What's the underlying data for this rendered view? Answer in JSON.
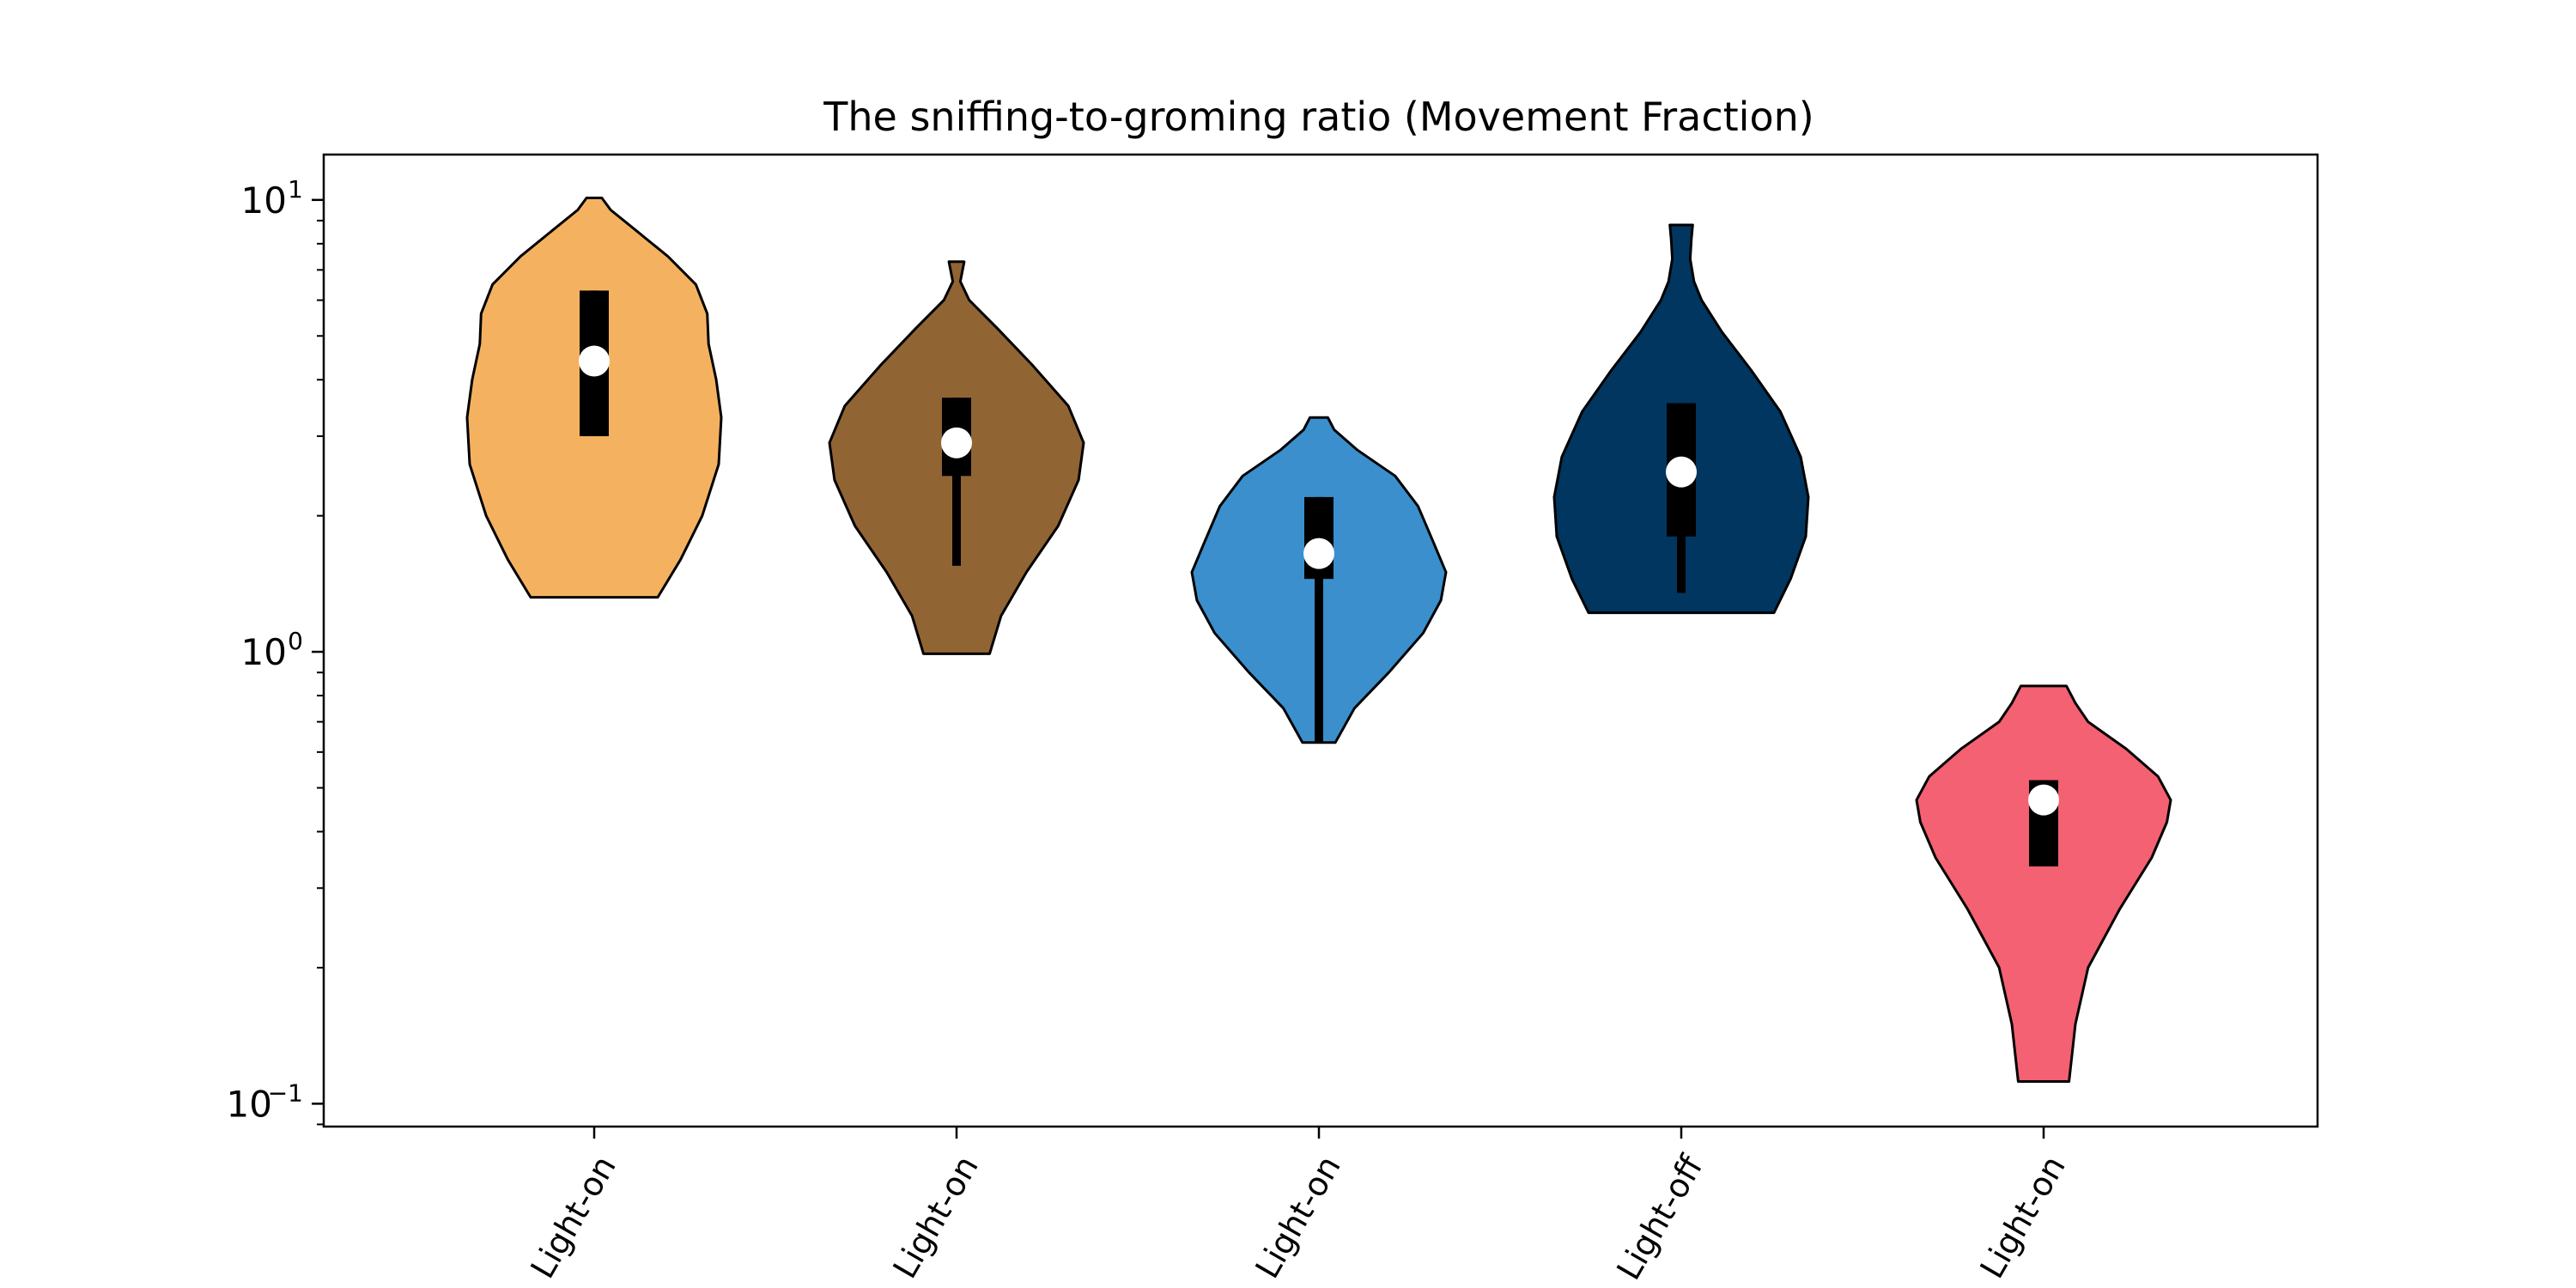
{
  "chart_data": {
    "type": "violin",
    "title": "The sniffing-to-groming ratio (Movement Fraction)",
    "xlabel": "",
    "ylabel": "",
    "yscale": "log",
    "ylim": [
      0.089,
      12.6
    ],
    "grid": false,
    "legend": "none",
    "categories": [
      "Light-on",
      "Light-on",
      "Light-on",
      "Light-off",
      "Light-on"
    ],
    "yticks": [
      {
        "value": 0.1,
        "base": "10",
        "exponent": "−1"
      },
      {
        "value": 1,
        "base": "10",
        "exponent": "0"
      },
      {
        "value": 10,
        "base": "10",
        "exponent": "1"
      }
    ],
    "violins": [
      {
        "category": "Light-on",
        "color": "#F4B260",
        "min": 1.32,
        "max": 10.1,
        "q1": 3.0,
        "median": 4.4,
        "q3": 6.3,
        "whisker_low": 3.0,
        "whisker_high": 6.3,
        "profile": [
          [
            1.32,
            0.5
          ],
          [
            1.6,
            0.68
          ],
          [
            2.0,
            0.85
          ],
          [
            2.6,
            0.98
          ],
          [
            3.3,
            1.0
          ],
          [
            4.0,
            0.96
          ],
          [
            4.8,
            0.9
          ],
          [
            5.6,
            0.89
          ],
          [
            6.5,
            0.8
          ],
          [
            7.5,
            0.58
          ],
          [
            8.6,
            0.32
          ],
          [
            9.5,
            0.13
          ],
          [
            10.1,
            0.06
          ]
        ]
      },
      {
        "category": "Light-on",
        "color": "#916434",
        "min": 0.99,
        "max": 7.3,
        "q1": 2.45,
        "median": 2.9,
        "q3": 3.65,
        "whisker_low": 1.55,
        "whisker_high": 3.65,
        "profile": [
          [
            0.99,
            0.26
          ],
          [
            1.2,
            0.35
          ],
          [
            1.5,
            0.55
          ],
          [
            1.9,
            0.8
          ],
          [
            2.4,
            0.96
          ],
          [
            2.9,
            1.0
          ],
          [
            3.5,
            0.88
          ],
          [
            4.3,
            0.6
          ],
          [
            5.2,
            0.32
          ],
          [
            6.0,
            0.1
          ],
          [
            6.6,
            0.03
          ],
          [
            7.3,
            0.06
          ]
        ]
      },
      {
        "category": "Light-on",
        "color": "#3A8FCC",
        "min": 0.63,
        "max": 3.3,
        "q1": 1.45,
        "median": 1.65,
        "q3": 2.2,
        "whisker_low": 0.63,
        "whisker_high": 2.2,
        "profile": [
          [
            0.63,
            0.13
          ],
          [
            0.75,
            0.28
          ],
          [
            0.9,
            0.55
          ],
          [
            1.1,
            0.82
          ],
          [
            1.3,
            0.96
          ],
          [
            1.5,
            1.0
          ],
          [
            1.75,
            0.9
          ],
          [
            2.1,
            0.78
          ],
          [
            2.45,
            0.6
          ],
          [
            2.8,
            0.3
          ],
          [
            3.1,
            0.12
          ],
          [
            3.3,
            0.07
          ]
        ]
      },
      {
        "category": "Light-off",
        "color": "#00365F",
        "min": 1.22,
        "max": 8.8,
        "q1": 1.8,
        "median": 2.5,
        "q3": 3.55,
        "whisker_low": 1.35,
        "whisker_high": 3.55,
        "profile": [
          [
            1.22,
            0.73
          ],
          [
            1.45,
            0.86
          ],
          [
            1.8,
            0.98
          ],
          [
            2.2,
            1.0
          ],
          [
            2.7,
            0.94
          ],
          [
            3.4,
            0.78
          ],
          [
            4.2,
            0.55
          ],
          [
            5.1,
            0.32
          ],
          [
            6.0,
            0.16
          ],
          [
            6.6,
            0.1
          ],
          [
            7.4,
            0.07
          ],
          [
            8.2,
            0.08
          ],
          [
            8.8,
            0.09
          ]
        ]
      },
      {
        "category": "Light-on",
        "color": "#F36172",
        "min": 0.112,
        "max": 0.84,
        "q1": 0.335,
        "median": 0.47,
        "q3": 0.52,
        "whisker_low": 0.335,
        "whisker_high": 0.52,
        "profile": [
          [
            0.112,
            0.2
          ],
          [
            0.15,
            0.25
          ],
          [
            0.2,
            0.35
          ],
          [
            0.27,
            0.6
          ],
          [
            0.35,
            0.85
          ],
          [
            0.42,
            0.97
          ],
          [
            0.47,
            1.0
          ],
          [
            0.53,
            0.9
          ],
          [
            0.61,
            0.65
          ],
          [
            0.7,
            0.35
          ],
          [
            0.77,
            0.25
          ],
          [
            0.84,
            0.18
          ]
        ]
      }
    ]
  }
}
